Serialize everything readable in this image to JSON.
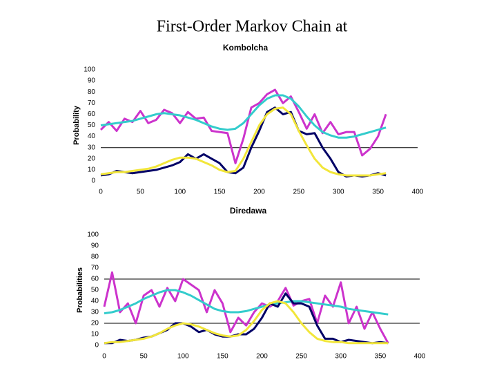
{
  "title": "First-Order Markov Chain at",
  "chart_data": [
    {
      "type": "line",
      "title": "Kombolcha",
      "y_label": "Probability",
      "x": [
        0,
        10,
        20,
        30,
        40,
        50,
        60,
        70,
        80,
        90,
        100,
        110,
        120,
        130,
        140,
        150,
        160,
        170,
        180,
        190,
        200,
        210,
        220,
        230,
        240,
        250,
        260,
        270,
        280,
        290,
        300,
        310,
        320,
        330,
        340,
        350,
        360
      ],
      "xlim": [
        0,
        400
      ],
      "xticks": [
        0,
        50,
        100,
        150,
        200,
        250,
        300,
        350,
        400
      ],
      "ylim": [
        0,
        100
      ],
      "yticks": [
        0,
        10,
        20,
        30,
        40,
        50,
        60,
        70,
        80,
        90,
        100
      ],
      "reference_lines": [
        30
      ],
      "series": [
        {
          "color": "#cc33cc",
          "values": [
            46,
            53,
            45,
            56,
            53,
            63,
            52,
            55,
            64,
            61,
            52,
            62,
            56,
            57,
            45,
            44,
            43,
            16,
            38,
            66,
            70,
            78,
            82,
            70,
            76,
            62,
            47,
            60,
            43,
            53,
            42,
            44,
            44,
            23,
            29,
            40,
            60
          ]
        },
        {
          "color": "#33cccc",
          "values": [
            50,
            51,
            52,
            53,
            54,
            56,
            58,
            60,
            61,
            60,
            59,
            57,
            55,
            52,
            49,
            47,
            46,
            47,
            52,
            60,
            68,
            74,
            77,
            77,
            74,
            67,
            58,
            50,
            44,
            41,
            39,
            39,
            40,
            42,
            44,
            46,
            48
          ]
        },
        {
          "color": "#000066",
          "values": [
            5,
            6,
            9,
            8,
            7,
            8,
            9,
            10,
            12,
            14,
            17,
            24,
            20,
            24,
            20,
            16,
            8,
            7,
            12,
            30,
            45,
            62,
            66,
            60,
            62,
            45,
            42,
            43,
            30,
            20,
            8,
            4,
            5,
            4,
            5,
            7,
            5
          ]
        },
        {
          "color": "#f2e63a",
          "values": [
            6,
            7,
            8,
            8,
            9,
            10,
            11,
            13,
            16,
            19,
            21,
            21,
            20,
            17,
            14,
            10,
            8,
            9,
            20,
            35,
            50,
            60,
            65,
            66,
            60,
            45,
            32,
            20,
            12,
            8,
            6,
            5,
            5,
            5,
            5,
            6,
            7
          ]
        }
      ]
    },
    {
      "type": "line",
      "title": "Diredawa",
      "y_label": "Probabilities",
      "x": [
        0,
        10,
        20,
        30,
        40,
        50,
        60,
        70,
        80,
        90,
        100,
        110,
        120,
        130,
        140,
        150,
        160,
        170,
        180,
        190,
        200,
        210,
        220,
        230,
        240,
        250,
        260,
        270,
        280,
        290,
        300,
        310,
        320,
        330,
        340,
        350,
        360
      ],
      "xlim": [
        0,
        400
      ],
      "xticks": [
        0,
        50,
        100,
        150,
        200,
        250,
        300,
        350,
        400
      ],
      "ylim": [
        0,
        100
      ],
      "yticks": [
        0,
        10,
        20,
        30,
        40,
        50,
        60,
        70,
        80,
        90,
        100
      ],
      "reference_lines": [
        20,
        60
      ],
      "series": [
        {
          "color": "#cc33cc",
          "values": [
            35,
            66,
            30,
            38,
            20,
            45,
            50,
            35,
            52,
            40,
            60,
            55,
            50,
            30,
            50,
            38,
            12,
            25,
            18,
            30,
            38,
            35,
            40,
            52,
            36,
            40,
            42,
            20,
            45,
            35,
            57,
            20,
            35,
            15,
            30,
            15,
            2
          ]
        },
        {
          "color": "#33cccc",
          "values": [
            29,
            30,
            32,
            35,
            38,
            42,
            45,
            48,
            50,
            50,
            48,
            45,
            41,
            37,
            33,
            31,
            30,
            30,
            31,
            33,
            35,
            37,
            38,
            39,
            40,
            40,
            39,
            38,
            37,
            36,
            35,
            33,
            32,
            31,
            30,
            29,
            28
          ]
        },
        {
          "color": "#000066",
          "values": [
            2,
            2,
            5,
            4,
            5,
            7,
            8,
            11,
            14,
            20,
            20,
            17,
            12,
            14,
            10,
            8,
            8,
            10,
            10,
            15,
            25,
            38,
            35,
            47,
            38,
            38,
            35,
            18,
            6,
            6,
            3,
            5,
            4,
            3,
            2,
            3,
            2
          ]
        },
        {
          "color": "#f2e63a",
          "values": [
            2,
            3,
            3,
            4,
            5,
            6,
            8,
            11,
            15,
            18,
            20,
            19,
            17,
            14,
            11,
            9,
            8,
            9,
            14,
            22,
            32,
            38,
            40,
            38,
            30,
            20,
            12,
            6,
            4,
            3,
            3,
            2,
            2,
            2,
            2,
            2,
            2
          ]
        }
      ]
    }
  ]
}
